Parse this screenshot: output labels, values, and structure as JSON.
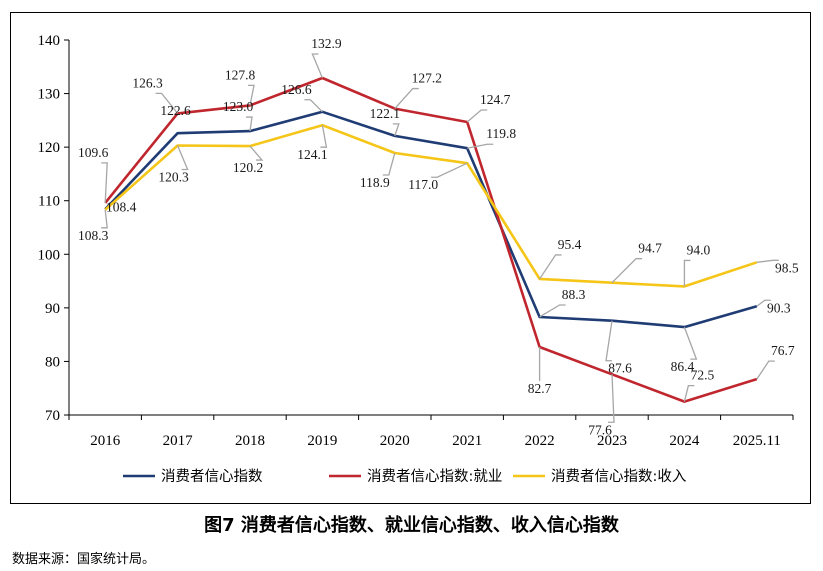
{
  "caption": "图7 消费者信心指数、就业信心指数、收入信心指数",
  "source": "数据来源：国家统计局。",
  "chart_data": {
    "type": "line",
    "categories": [
      "2016",
      "2017",
      "2018",
      "2019",
      "2020",
      "2021",
      "2022",
      "2023",
      "2024",
      "2025.11"
    ],
    "ylim": [
      70,
      140
    ],
    "yticks": [
      "70",
      "80",
      "90",
      "100",
      "110",
      "120",
      "130",
      "140"
    ],
    "grid": false,
    "legend_position": "bottom",
    "series": [
      {
        "name": "消费者信心指数",
        "color": "#1f3c74",
        "values": [
          108.4,
          122.6,
          123.0,
          126.6,
          122.1,
          119.8,
          88.3,
          87.6,
          86.4,
          90.3
        ]
      },
      {
        "name": "消费者信心指数:就业",
        "color": "#c0262d",
        "values": [
          109.6,
          126.3,
          127.8,
          132.9,
          127.2,
          124.7,
          82.7,
          77.6,
          72.5,
          76.7
        ]
      },
      {
        "name": "消费者信心指数:收入",
        "color": "#f5c518",
        "values": [
          108.3,
          120.3,
          120.2,
          124.1,
          118.9,
          117.0,
          95.4,
          94.7,
          94.0,
          98.5
        ]
      }
    ],
    "labels": [
      {
        "text": "109.6"
      },
      {
        "text": "108.4"
      },
      {
        "text": "108.3"
      },
      {
        "text": "126.3"
      },
      {
        "text": "122.6"
      },
      {
        "text": "120.3"
      },
      {
        "text": "127.8"
      },
      {
        "text": "123.0"
      },
      {
        "text": "120.2"
      },
      {
        "text": "132.9"
      },
      {
        "text": "126.6"
      },
      {
        "text": "124.1"
      },
      {
        "text": "127.2"
      },
      {
        "text": "122.1"
      },
      {
        "text": "118.9"
      },
      {
        "text": "124.7"
      },
      {
        "text": "119.8"
      },
      {
        "text": "117.0"
      },
      {
        "text": "95.4"
      },
      {
        "text": "88.3"
      },
      {
        "text": "82.7"
      },
      {
        "text": "94.7"
      },
      {
        "text": "87.6"
      },
      {
        "text": "77.6"
      },
      {
        "text": "94.0"
      },
      {
        "text": "86.4"
      },
      {
        "text": "72.5"
      },
      {
        "text": "98.5"
      },
      {
        "text": "90.3"
      },
      {
        "text": "76.7"
      }
    ]
  }
}
